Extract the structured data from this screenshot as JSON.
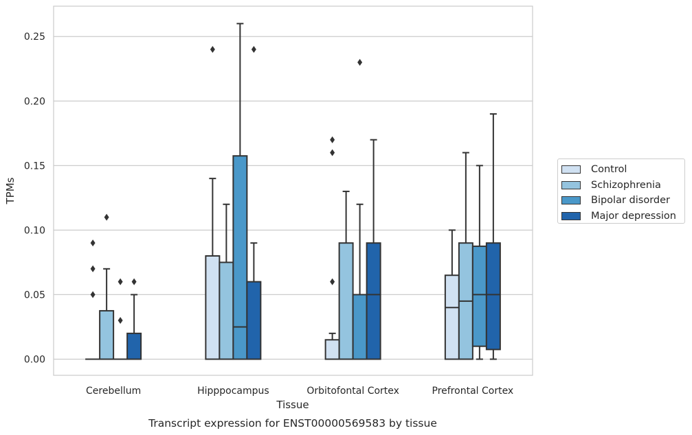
{
  "chart_data": {
    "type": "box",
    "title": "Transcript expression for ENST00000569583 by tissue",
    "xlabel": "Tissue",
    "ylabel": "TPMs",
    "ylim": [
      -0.0125,
      0.2735
    ],
    "yticks": [
      0.0,
      0.05,
      0.1,
      0.15,
      0.2,
      0.25
    ],
    "ytick_labels": [
      "0.00",
      "0.05",
      "0.10",
      "0.15",
      "0.20",
      "0.25"
    ],
    "grid": "horizontal",
    "legend_position": "right",
    "categories": [
      "Cerebellum",
      "Hipppocampus",
      "Orbitofontal Cortex",
      "Prefrontal Cortex"
    ],
    "series": [
      {
        "name": "Control",
        "color": "#d0e1f2",
        "boxes": [
          {
            "q1": 0.0,
            "median": 0.0,
            "q3": 0.0,
            "whisker_low": 0.0,
            "whisker_high": 0.0,
            "outliers": [
              0.05,
              0.07,
              0.09
            ]
          },
          {
            "q1": 0.0,
            "median": 0.0,
            "q3": 0.08,
            "whisker_low": 0.0,
            "whisker_high": 0.14,
            "outliers": [
              0.24
            ]
          },
          {
            "q1": 0.0,
            "median": 0.0,
            "q3": 0.015,
            "whisker_low": 0.0,
            "whisker_high": 0.02,
            "outliers": [
              0.06,
              0.16,
              0.17
            ]
          },
          {
            "q1": 0.0,
            "median": 0.04,
            "q3": 0.065,
            "whisker_low": 0.0,
            "whisker_high": 0.1,
            "outliers": []
          }
        ]
      },
      {
        "name": "Schizophrenia",
        "color": "#94c4df",
        "boxes": [
          {
            "q1": 0.0,
            "median": 0.0,
            "q3": 0.0375,
            "whisker_low": 0.0,
            "whisker_high": 0.07,
            "outliers": [
              0.11
            ]
          },
          {
            "q1": 0.0,
            "median": 0.0,
            "q3": 0.075,
            "whisker_low": 0.0,
            "whisker_high": 0.12,
            "outliers": []
          },
          {
            "q1": 0.0,
            "median": 0.0,
            "q3": 0.09,
            "whisker_low": 0.0,
            "whisker_high": 0.13,
            "outliers": []
          },
          {
            "q1": 0.0,
            "median": 0.045,
            "q3": 0.09,
            "whisker_low": 0.0,
            "whisker_high": 0.16,
            "outliers": []
          }
        ]
      },
      {
        "name": "Bipolar disorder",
        "color": "#4a98c9",
        "boxes": [
          {
            "q1": 0.0,
            "median": 0.0,
            "q3": 0.0,
            "whisker_low": 0.0,
            "whisker_high": 0.0,
            "outliers": [
              0.03,
              0.06
            ]
          },
          {
            "q1": 0.0,
            "median": 0.025,
            "q3": 0.1575,
            "whisker_low": 0.0,
            "whisker_high": 0.26,
            "outliers": []
          },
          {
            "q1": 0.0,
            "median": 0.0,
            "q3": 0.05,
            "whisker_low": 0.0,
            "whisker_high": 0.12,
            "outliers": [
              0.23
            ]
          },
          {
            "q1": 0.01,
            "median": 0.05,
            "q3": 0.0875,
            "whisker_low": 0.0,
            "whisker_high": 0.15,
            "outliers": []
          }
        ]
      },
      {
        "name": "Major depression",
        "color": "#2164ab",
        "boxes": [
          {
            "q1": 0.0,
            "median": 0.0,
            "q3": 0.02,
            "whisker_low": 0.0,
            "whisker_high": 0.05,
            "outliers": [
              0.06
            ]
          },
          {
            "q1": 0.0,
            "median": 0.0,
            "q3": 0.06,
            "whisker_low": 0.0,
            "whisker_high": 0.09,
            "outliers": [
              0.24
            ]
          },
          {
            "q1": 0.0,
            "median": 0.05,
            "q3": 0.09,
            "whisker_low": 0.0,
            "whisker_high": 0.17,
            "outliers": []
          },
          {
            "q1": 0.0075,
            "median": 0.05,
            "q3": 0.09,
            "whisker_low": 0.0,
            "whisker_high": 0.19,
            "outliers": []
          }
        ]
      }
    ]
  }
}
